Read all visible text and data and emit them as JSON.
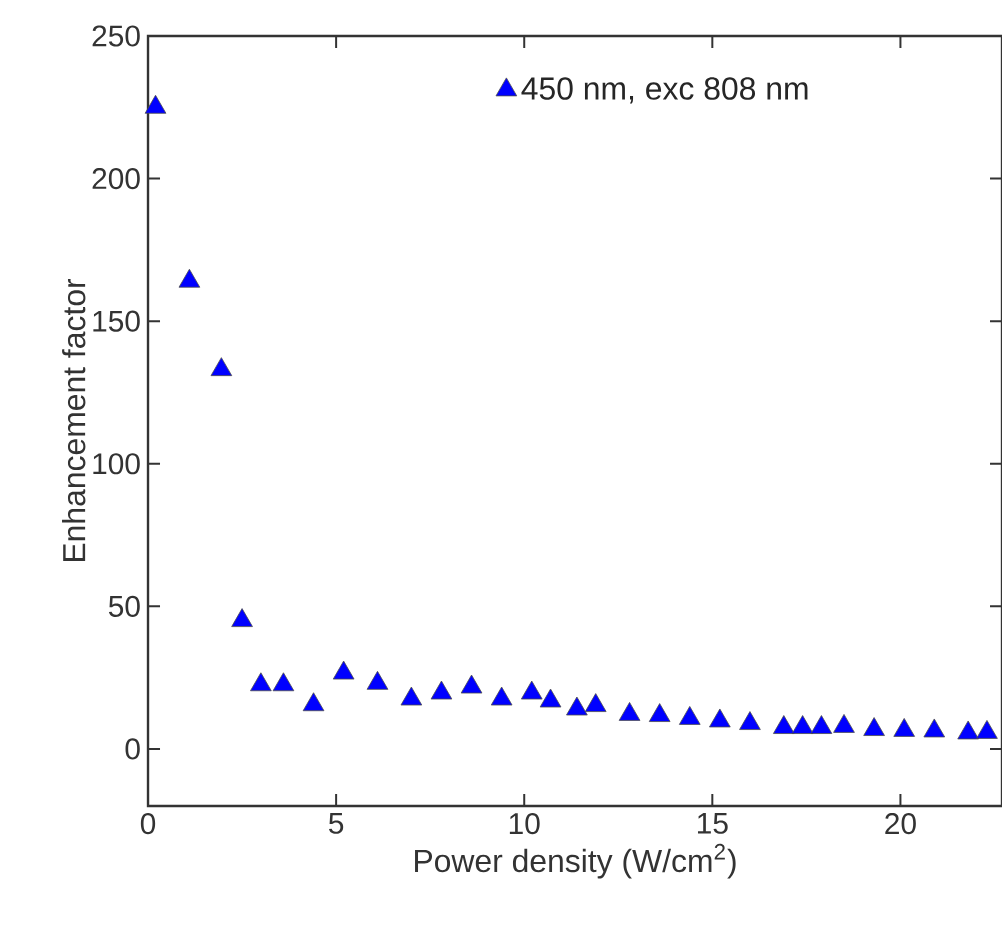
{
  "chart_data": {
    "type": "scatter",
    "xlabel": "Power density (W/cm$^{2}$)",
    "ylabel": "Enhancement factor",
    "xlim": [
      0,
      22.7
    ],
    "ylim": [
      -20,
      250
    ],
    "xticks": [
      0,
      5,
      10,
      15,
      20
    ],
    "yticks": [
      0,
      50,
      100,
      150,
      200,
      250
    ],
    "legend": "top right",
    "marker": "triangle",
    "grid": false,
    "series": [
      {
        "name": "450 nm, exc 808 nm",
        "color": "#0000ff",
        "x": [
          0.2,
          1.1,
          1.95,
          2.5,
          3.0,
          3.6,
          4.4,
          5.2,
          6.1,
          7.0,
          7.8,
          8.6,
          9.4,
          10.2,
          10.7,
          11.4,
          11.9,
          12.8,
          13.6,
          14.4,
          15.2,
          16.0,
          16.9,
          17.4,
          17.9,
          18.5,
          19.3,
          20.1,
          20.9,
          21.8,
          22.3
        ],
        "values": [
          225,
          164,
          133,
          45,
          22.5,
          22.5,
          15.5,
          26.6,
          23,
          17.5,
          19.6,
          21.7,
          17.5,
          19.6,
          16.8,
          14,
          15.2,
          12.1,
          11.7,
          10.7,
          9.8,
          8.9,
          7.5,
          7.5,
          7.5,
          7.9,
          6.8,
          6.5,
          6.3,
          5.6,
          5.8
        ]
      }
    ]
  }
}
